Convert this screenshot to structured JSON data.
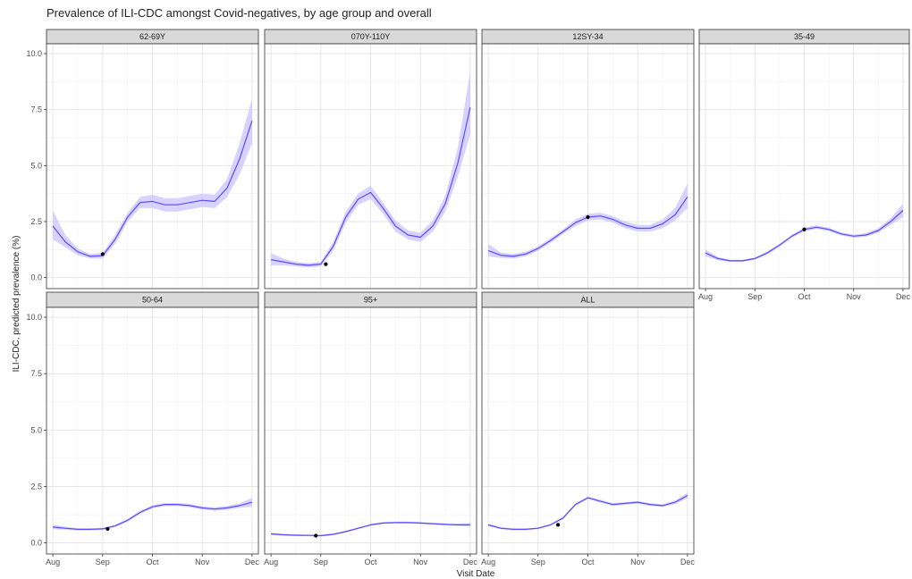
{
  "chart_data": {
    "type": "line",
    "title": "Prevalence of ILI-CDC amongst Covid-negatives, by age group and overall",
    "xlabel": "Visit Date",
    "ylabel": "ILI-CDC, predicted prevalence (%)",
    "x_ticks": [
      "Aug",
      "Sep",
      "Oct",
      "Nov",
      "Dec"
    ],
    "y_ticks": [
      "0.0",
      "2.5",
      "5.0",
      "7.5",
      "10.0"
    ],
    "xlim": [
      0,
      4
    ],
    "ylim": [
      0,
      10
    ],
    "grid": true,
    "legend": "none",
    "colors": {
      "line": "#5b4bff",
      "band": "#c9c3ff",
      "point": "#000000",
      "strip": "#d9d9d9"
    },
    "panels": [
      {
        "name": "62-69Y",
        "x": [
          0,
          0.25,
          0.5,
          0.75,
          1.0,
          1.25,
          1.5,
          1.75,
          2.0,
          2.25,
          2.5,
          2.75,
          3.0,
          3.25,
          3.5,
          3.75,
          4.0
        ],
        "y": [
          2.3,
          1.6,
          1.15,
          0.95,
          0.98,
          1.7,
          2.7,
          3.35,
          3.4,
          3.25,
          3.25,
          3.35,
          3.45,
          3.4,
          4.0,
          5.3,
          7.0
        ],
        "lower": [
          1.7,
          1.35,
          1.0,
          0.85,
          0.85,
          1.5,
          2.5,
          3.1,
          3.1,
          2.95,
          2.95,
          3.05,
          3.15,
          3.1,
          3.6,
          4.6,
          6.0
        ],
        "upper": [
          3.0,
          1.9,
          1.3,
          1.05,
          1.1,
          1.9,
          2.9,
          3.6,
          3.7,
          3.55,
          3.55,
          3.65,
          3.75,
          3.7,
          4.4,
          6.0,
          8.0
        ],
        "point": [
          1.0,
          1.05
        ]
      },
      {
        "name": "070Y-110Y",
        "x": [
          0,
          0.25,
          0.5,
          0.75,
          1.0,
          1.25,
          1.5,
          1.75,
          2.0,
          2.25,
          2.5,
          2.75,
          3.0,
          3.25,
          3.5,
          3.75,
          4.0
        ],
        "y": [
          0.8,
          0.7,
          0.6,
          0.55,
          0.6,
          1.4,
          2.7,
          3.5,
          3.8,
          3.1,
          2.3,
          1.9,
          1.8,
          2.3,
          3.3,
          5.1,
          7.6
        ],
        "lower": [
          0.55,
          0.55,
          0.5,
          0.45,
          0.5,
          1.2,
          2.45,
          3.25,
          3.5,
          2.85,
          2.05,
          1.7,
          1.6,
          2.05,
          2.95,
          4.5,
          6.4
        ],
        "upper": [
          1.1,
          0.85,
          0.7,
          0.65,
          0.7,
          1.6,
          2.95,
          3.75,
          4.1,
          3.35,
          2.55,
          2.1,
          2.0,
          2.55,
          3.65,
          5.8,
          9.2
        ],
        "point": [
          1.1,
          0.6
        ]
      },
      {
        "name": "12SY-34",
        "x": [
          0,
          0.25,
          0.5,
          0.75,
          1.0,
          1.25,
          1.5,
          1.75,
          2.0,
          2.25,
          2.5,
          2.75,
          3.0,
          3.25,
          3.5,
          3.75,
          4.0
        ],
        "y": [
          1.2,
          1.0,
          0.95,
          1.05,
          1.3,
          1.65,
          2.05,
          2.45,
          2.7,
          2.75,
          2.6,
          2.35,
          2.2,
          2.2,
          2.4,
          2.8,
          3.6
        ],
        "lower": [
          0.95,
          0.88,
          0.85,
          0.95,
          1.2,
          1.55,
          1.95,
          2.3,
          2.55,
          2.6,
          2.45,
          2.2,
          2.05,
          2.05,
          2.2,
          2.55,
          3.1
        ],
        "upper": [
          1.5,
          1.12,
          1.05,
          1.15,
          1.4,
          1.75,
          2.15,
          2.6,
          2.85,
          2.9,
          2.75,
          2.5,
          2.35,
          2.35,
          2.6,
          3.1,
          4.2
        ],
        "point": [
          2.0,
          2.7
        ]
      },
      {
        "name": "35-49",
        "x": [
          0,
          0.25,
          0.5,
          0.75,
          1.0,
          1.25,
          1.5,
          1.75,
          2.0,
          2.25,
          2.5,
          2.75,
          3.0,
          3.25,
          3.5,
          3.75,
          4.0
        ],
        "y": [
          1.1,
          0.85,
          0.75,
          0.75,
          0.85,
          1.1,
          1.45,
          1.85,
          2.15,
          2.25,
          2.15,
          1.95,
          1.85,
          1.9,
          2.1,
          2.5,
          3.0
        ],
        "lower": [
          0.95,
          0.78,
          0.7,
          0.7,
          0.8,
          1.03,
          1.38,
          1.78,
          2.07,
          2.17,
          2.07,
          1.88,
          1.78,
          1.82,
          2.0,
          2.35,
          2.7
        ],
        "upper": [
          1.25,
          0.92,
          0.8,
          0.8,
          0.9,
          1.17,
          1.52,
          1.92,
          2.23,
          2.33,
          2.23,
          2.02,
          1.92,
          1.98,
          2.2,
          2.65,
          3.3
        ],
        "point": [
          2.0,
          2.15
        ]
      },
      {
        "name": "50-64",
        "x": [
          0,
          0.25,
          0.5,
          0.75,
          1.0,
          1.25,
          1.5,
          1.75,
          2.0,
          2.25,
          2.5,
          2.75,
          3.0,
          3.25,
          3.5,
          3.75,
          4.0
        ],
        "y": [
          0.7,
          0.65,
          0.6,
          0.6,
          0.62,
          0.75,
          1.0,
          1.35,
          1.6,
          1.7,
          1.7,
          1.65,
          1.55,
          1.5,
          1.55,
          1.65,
          1.8
        ],
        "lower": [
          0.6,
          0.58,
          0.55,
          0.55,
          0.57,
          0.7,
          0.94,
          1.28,
          1.53,
          1.63,
          1.63,
          1.58,
          1.48,
          1.43,
          1.47,
          1.55,
          1.6
        ],
        "upper": [
          0.8,
          0.72,
          0.65,
          0.65,
          0.67,
          0.8,
          1.06,
          1.42,
          1.67,
          1.77,
          1.77,
          1.72,
          1.62,
          1.57,
          1.63,
          1.75,
          2.0
        ],
        "point": [
          1.1,
          0.62
        ]
      },
      {
        "name": "95+",
        "x": [
          0,
          0.25,
          0.5,
          0.75,
          1.0,
          1.25,
          1.5,
          1.75,
          2.0,
          2.25,
          2.5,
          2.75,
          3.0,
          3.25,
          3.5,
          3.75,
          4.0
        ],
        "y": [
          0.4,
          0.36,
          0.34,
          0.33,
          0.32,
          0.38,
          0.5,
          0.65,
          0.8,
          0.88,
          0.9,
          0.9,
          0.88,
          0.85,
          0.82,
          0.8,
          0.8
        ],
        "lower": [
          0.35,
          0.32,
          0.3,
          0.29,
          0.28,
          0.34,
          0.46,
          0.61,
          0.76,
          0.84,
          0.86,
          0.86,
          0.84,
          0.81,
          0.78,
          0.75,
          0.72
        ],
        "upper": [
          0.45,
          0.4,
          0.38,
          0.37,
          0.36,
          0.42,
          0.54,
          0.69,
          0.84,
          0.92,
          0.94,
          0.94,
          0.92,
          0.89,
          0.86,
          0.85,
          0.88
        ],
        "point": [
          0.9,
          0.32
        ]
      },
      {
        "name": "ALL",
        "x": [
          0,
          0.25,
          0.5,
          0.75,
          1.0,
          1.25,
          1.5,
          1.75,
          2.0,
          2.25,
          2.5,
          2.75,
          3.0,
          3.25,
          3.5,
          3.75,
          4.0
        ],
        "y": [
          0.8,
          0.65,
          0.6,
          0.6,
          0.65,
          0.8,
          1.1,
          1.7,
          2.0,
          1.85,
          1.7,
          1.75,
          1.8,
          1.7,
          1.65,
          1.8,
          2.1
        ],
        "lower": [
          0.74,
          0.6,
          0.56,
          0.56,
          0.61,
          0.76,
          1.05,
          1.64,
          1.94,
          1.79,
          1.64,
          1.69,
          1.74,
          1.64,
          1.59,
          1.72,
          1.98
        ],
        "upper": [
          0.86,
          0.7,
          0.64,
          0.64,
          0.69,
          0.84,
          1.15,
          1.76,
          2.06,
          1.91,
          1.76,
          1.81,
          1.86,
          1.76,
          1.71,
          1.88,
          2.22
        ],
        "point": [
          1.4,
          0.8
        ]
      }
    ]
  }
}
